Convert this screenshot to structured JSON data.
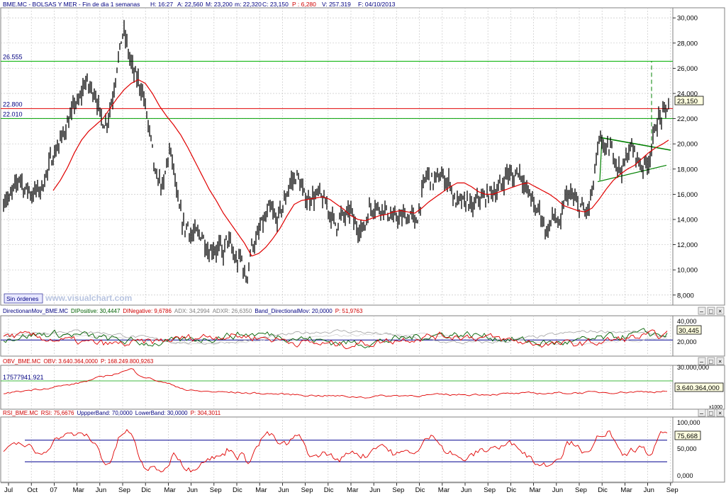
{
  "header": {
    "symbol_line": "BME.MC - BOLSAS Y MER - Fin de dia 1 semanas",
    "h": "H: 16:27",
    "a": "A: 22,560",
    "m": "M: 23,200",
    "mm": "m: 22,320",
    "c": "C: 23,150",
    "p": "P : 6,280",
    "v": "V: 257.319",
    "f": "F: 04/10/2013"
  },
  "main_panel": {
    "y_ticks": [
      "30,000",
      "28,000",
      "26,000",
      "24,000",
      "22,000",
      "20,000",
      "18,000",
      "16,000",
      "14,000",
      "12,000",
      "10,000",
      "8,000"
    ],
    "levels": [
      {
        "label": "26.555",
        "value": 26.555,
        "color": "#00b000"
      },
      {
        "label": "22.800",
        "value": 22.8,
        "color": "#e00000"
      },
      {
        "label": "22.010",
        "value": 22.01,
        "color": "#00a000"
      }
    ],
    "last_value": "23,150",
    "orders_button": "Sin órdenes",
    "watermark": "www.visualchart.com"
  },
  "dmi_panel": {
    "title_parts": [
      {
        "text": "DirectionanMov_BME.MC",
        "color": "#000080"
      },
      {
        "text": "DIPositive: 30,4447",
        "color": "#006000"
      },
      {
        "text": "DINegative: 9,6786",
        "color": "#d00000"
      },
      {
        "text": "ADX: 34,2994",
        "color": "#808080"
      },
      {
        "text": "ADXR: 26,6350",
        "color": "#808080"
      },
      {
        "text": "Band_DirectionalMov: 20,0000",
        "color": "#000080"
      },
      {
        "text": "P: 51,9763",
        "color": "#d00000"
      }
    ],
    "y_ticks": [
      "40,000",
      "20,000"
    ],
    "last_value": "30,445"
  },
  "obv_panel": {
    "title_parts": [
      {
        "text": "OBV_BME.MC",
        "color": "#d00000"
      },
      {
        "text": "OBV: 3.640.364,0000",
        "color": "#d00000"
      },
      {
        "text": "P: 168.249.800,9263",
        "color": "#d00000"
      }
    ],
    "left_label": "17577941.921",
    "y_ticks": [
      "30.000,000"
    ],
    "last_value": "3.640.364,000",
    "scale_label": "x1000"
  },
  "rsi_panel": {
    "title_parts": [
      {
        "text": "RSI_BME.MC",
        "color": "#d00000"
      },
      {
        "text": "RSI: 75,6676",
        "color": "#d00000"
      },
      {
        "text": "UppperBand: 70,0000",
        "color": "#000080"
      },
      {
        "text": "LowerBand: 30,0000",
        "color": "#000080"
      },
      {
        "text": "P: 304,3011",
        "color": "#d00000"
      }
    ],
    "y_ticks": [
      "100,000",
      "50,000",
      "0,000"
    ],
    "last_value": "75,668"
  },
  "x_axis_labels": [
    "Jul",
    "Oct",
    "07",
    "Mar",
    "Jun",
    "Sep",
    "Dic",
    "Mar",
    "Jun",
    "Sep",
    "Dic",
    "Mar",
    "Jun",
    "Sep",
    "Dic",
    "Mar",
    "Jun",
    "Sep",
    "Dic",
    "Mar",
    "Jun",
    "Sep",
    "Dic",
    "Mar",
    "Jun",
    "Sep",
    "Dic",
    "Mar",
    "Jun",
    "Sep"
  ],
  "colors": {
    "price": "#000000",
    "moving_average": "#e00000",
    "triangle": "#008000",
    "grid": "#c8c8c8",
    "band": "#000090",
    "panel_border": "#808080"
  },
  "chart_data": {
    "type": "line",
    "price_anchors": [
      [
        0,
        15.6
      ],
      [
        4,
        15.2
      ],
      [
        8,
        15.8
      ],
      [
        13,
        15.5
      ],
      [
        18,
        16.3
      ],
      [
        23,
        16.8
      ],
      [
        28,
        17.5
      ],
      [
        31,
        17.0
      ],
      [
        35,
        16.2
      ],
      [
        40,
        16.6
      ],
      [
        44,
        15.9
      ],
      [
        48,
        16.1
      ],
      [
        52,
        16.4
      ],
      [
        56,
        16.3
      ],
      [
        61,
        16.8
      ],
      [
        65,
        17.6
      ],
      [
        68,
        17.8
      ],
      [
        70,
        18.7
      ],
      [
        75,
        19.0
      ],
      [
        80,
        19.6
      ],
      [
        85,
        20.2
      ],
      [
        90,
        20.9
      ],
      [
        95,
        21.6
      ],
      [
        100,
        22.1
      ],
      [
        105,
        23.3
      ],
      [
        110,
        23.1
      ],
      [
        115,
        24.0
      ],
      [
        120,
        25.0
      ],
      [
        125,
        24.6
      ],
      [
        130,
        24.3
      ],
      [
        135,
        23.9
      ],
      [
        140,
        22.5
      ],
      [
        145,
        21.8
      ],
      [
        150,
        21.5
      ],
      [
        155,
        22.8
      ],
      [
        160,
        24.0
      ],
      [
        165,
        26.2
      ],
      [
        168,
        27.0
      ],
      [
        172,
        28.6
      ],
      [
        175,
        28.8
      ],
      [
        178,
        28.2
      ],
      [
        182,
        27.0
      ],
      [
        186,
        26.2
      ],
      [
        190,
        25.5
      ],
      [
        195,
        25.0
      ],
      [
        200,
        24.3
      ],
      [
        205,
        23.0
      ],
      [
        210,
        21.2
      ],
      [
        215,
        19.5
      ],
      [
        220,
        17.0
      ],
      [
        225,
        17.2
      ],
      [
        230,
        16.3
      ],
      [
        235,
        18.5
      ],
      [
        240,
        19.5
      ],
      [
        245,
        18.0
      ],
      [
        250,
        15.5
      ],
      [
        255,
        14.4
      ],
      [
        260,
        13.2
      ],
      [
        265,
        13.6
      ],
      [
        270,
        12.5
      ],
      [
        275,
        13.0
      ],
      [
        280,
        12.8
      ],
      [
        285,
        12.8
      ],
      [
        290,
        12.0
      ],
      [
        295,
        11.3
      ],
      [
        300,
        11.8
      ],
      [
        305,
        11.5
      ],
      [
        310,
        11.9
      ],
      [
        315,
        11.2
      ],
      [
        320,
        12.6
      ],
      [
        325,
        12.0
      ],
      [
        330,
        11.0
      ],
      [
        335,
        10.5
      ],
      [
        340,
        11.2
      ],
      [
        345,
        9.5
      ],
      [
        348,
        9.2
      ],
      [
        352,
        11.0
      ],
      [
        356,
        12.2
      ],
      [
        360,
        12.0
      ],
      [
        365,
        13.0
      ],
      [
        370,
        13.8
      ],
      [
        375,
        14.0
      ],
      [
        380,
        15.0
      ],
      [
        385,
        14.5
      ],
      [
        390,
        13.8
      ],
      [
        395,
        14.6
      ],
      [
        400,
        15.2
      ],
      [
        405,
        16.1
      ],
      [
        410,
        17.0
      ],
      [
        415,
        17.2
      ],
      [
        420,
        17.5
      ],
      [
        425,
        16.5
      ],
      [
        430,
        15.8
      ],
      [
        435,
        15.5
      ],
      [
        440,
        15.9
      ],
      [
        445,
        15.7
      ],
      [
        450,
        16.2
      ],
      [
        455,
        15.5
      ],
      [
        460,
        15.3
      ],
      [
        465,
        14.5
      ],
      [
        470,
        14.0
      ],
      [
        475,
        13.5
      ],
      [
        480,
        14.3
      ],
      [
        485,
        14.2
      ],
      [
        490,
        14.4
      ],
      [
        495,
        14.8
      ],
      [
        500,
        13.6
      ],
      [
        505,
        13.3
      ],
      [
        510,
        13.2
      ],
      [
        515,
        13.5
      ],
      [
        520,
        14.8
      ],
      [
        525,
        14.9
      ],
      [
        530,
        15.1
      ],
      [
        535,
        14.8
      ],
      [
        540,
        15.0
      ],
      [
        545,
        14.6
      ],
      [
        550,
        14.3
      ],
      [
        555,
        14.0
      ],
      [
        560,
        14.3
      ],
      [
        565,
        14.0
      ],
      [
        570,
        14.4
      ],
      [
        575,
        14.0
      ],
      [
        580,
        14.6
      ],
      [
        585,
        13.7
      ],
      [
        590,
        14.3
      ],
      [
        595,
        16.0
      ],
      [
        600,
        17.4
      ],
      [
        605,
        17.6
      ],
      [
        610,
        16.9
      ],
      [
        615,
        17.3
      ],
      [
        620,
        17.4
      ],
      [
        625,
        17.4
      ],
      [
        630,
        16.9
      ],
      [
        635,
        17.1
      ],
      [
        640,
        15.5
      ],
      [
        645,
        15.3
      ],
      [
        650,
        15.6
      ],
      [
        655,
        15.2
      ],
      [
        660,
        15.6
      ],
      [
        665,
        14.8
      ],
      [
        670,
        15.2
      ],
      [
        675,
        15.8
      ],
      [
        680,
        15.6
      ],
      [
        685,
        15.8
      ],
      [
        690,
        16.0
      ],
      [
        695,
        16.4
      ],
      [
        700,
        16.1
      ],
      [
        705,
        16.6
      ],
      [
        710,
        16.9
      ],
      [
        715,
        17.8
      ],
      [
        720,
        17.5
      ],
      [
        725,
        17.2
      ],
      [
        730,
        18.0
      ],
      [
        735,
        17.6
      ],
      [
        740,
        16.5
      ],
      [
        745,
        16.2
      ],
      [
        750,
        15.8
      ],
      [
        755,
        14.6
      ],
      [
        760,
        15.0
      ],
      [
        765,
        14.0
      ],
      [
        770,
        13.0
      ],
      [
        775,
        13.4
      ],
      [
        780,
        14.4
      ],
      [
        785,
        14.0
      ],
      [
        790,
        13.2
      ],
      [
        795,
        15.3
      ],
      [
        800,
        16.1
      ],
      [
        805,
        15.8
      ],
      [
        810,
        15.7
      ],
      [
        815,
        15.0
      ],
      [
        820,
        15.1
      ],
      [
        825,
        14.5
      ],
      [
        830,
        14.8
      ],
      [
        835,
        16.1
      ],
      [
        840,
        18.2
      ],
      [
        845,
        20.1
      ],
      [
        850,
        20.2
      ],
      [
        855,
        19.4
      ],
      [
        860,
        19.7
      ],
      [
        865,
        19.3
      ],
      [
        870,
        18.4
      ],
      [
        875,
        18.0
      ],
      [
        880,
        18.2
      ],
      [
        885,
        19.2
      ],
      [
        890,
        19.8
      ],
      [
        895,
        19.3
      ],
      [
        900,
        18.8
      ],
      [
        905,
        18.1
      ],
      [
        910,
        18.5
      ],
      [
        915,
        18.6
      ],
      [
        920,
        20.0
      ],
      [
        925,
        21.5
      ],
      [
        930,
        22.0
      ],
      [
        935,
        22.3
      ],
      [
        940,
        22.8
      ],
      [
        943,
        23.15
      ]
    ],
    "ma_anchors": [
      [
        75,
        16.3
      ],
      [
        85,
        17.1
      ],
      [
        95,
        18.1
      ],
      [
        105,
        19.3
      ],
      [
        115,
        20.3
      ],
      [
        125,
        21.0
      ],
      [
        135,
        21.5
      ],
      [
        145,
        22.0
      ],
      [
        155,
        22.8
      ],
      [
        165,
        23.6
      ],
      [
        175,
        24.3
      ],
      [
        185,
        24.8
      ],
      [
        195,
        25.1
      ],
      [
        205,
        24.8
      ],
      [
        215,
        24.0
      ],
      [
        225,
        23.0
      ],
      [
        235,
        22.2
      ],
      [
        245,
        21.5
      ],
      [
        255,
        20.7
      ],
      [
        265,
        19.7
      ],
      [
        275,
        18.6
      ],
      [
        285,
        17.5
      ],
      [
        295,
        16.4
      ],
      [
        305,
        15.5
      ],
      [
        315,
        14.5
      ],
      [
        325,
        13.7
      ],
      [
        335,
        12.9
      ],
      [
        345,
        12.1
      ],
      [
        355,
        11.1
      ],
      [
        365,
        11.3
      ],
      [
        375,
        11.8
      ],
      [
        385,
        12.5
      ],
      [
        395,
        13.3
      ],
      [
        405,
        14.3
      ],
      [
        415,
        15.2
      ],
      [
        425,
        15.5
      ],
      [
        435,
        15.6
      ],
      [
        445,
        15.7
      ],
      [
        455,
        15.8
      ],
      [
        465,
        15.6
      ],
      [
        475,
        15.2
      ],
      [
        485,
        14.8
      ],
      [
        495,
        14.3
      ],
      [
        505,
        14.0
      ],
      [
        515,
        13.9
      ],
      [
        525,
        14.1
      ],
      [
        535,
        14.3
      ],
      [
        545,
        14.4
      ],
      [
        555,
        14.6
      ],
      [
        565,
        14.7
      ],
      [
        575,
        14.6
      ],
      [
        585,
        14.5
      ],
      [
        595,
        14.9
      ],
      [
        605,
        15.4
      ],
      [
        615,
        15.8
      ],
      [
        625,
        16.2
      ],
      [
        635,
        16.6
      ],
      [
        645,
        16.9
      ],
      [
        655,
        16.9
      ],
      [
        665,
        16.6
      ],
      [
        675,
        16.2
      ],
      [
        685,
        16.0
      ],
      [
        695,
        16.0
      ],
      [
        705,
        16.2
      ],
      [
        715,
        16.4
      ],
      [
        725,
        16.6
      ],
      [
        735,
        16.8
      ],
      [
        745,
        16.9
      ],
      [
        755,
        16.6
      ],
      [
        765,
        16.3
      ],
      [
        775,
        16.0
      ],
      [
        785,
        15.6
      ],
      [
        795,
        15.1
      ],
      [
        805,
        14.9
      ],
      [
        815,
        14.7
      ],
      [
        825,
        14.6
      ],
      [
        835,
        14.9
      ],
      [
        845,
        15.6
      ],
      [
        855,
        16.4
      ],
      [
        865,
        17.1
      ],
      [
        875,
        17.6
      ],
      [
        885,
        18.0
      ],
      [
        895,
        18.3
      ],
      [
        905,
        18.8
      ],
      [
        915,
        19.3
      ],
      [
        925,
        19.7
      ],
      [
        935,
        20.0
      ],
      [
        943,
        20.3
      ]
    ],
    "y_range": [
      7.2,
      30.8
    ]
  }
}
